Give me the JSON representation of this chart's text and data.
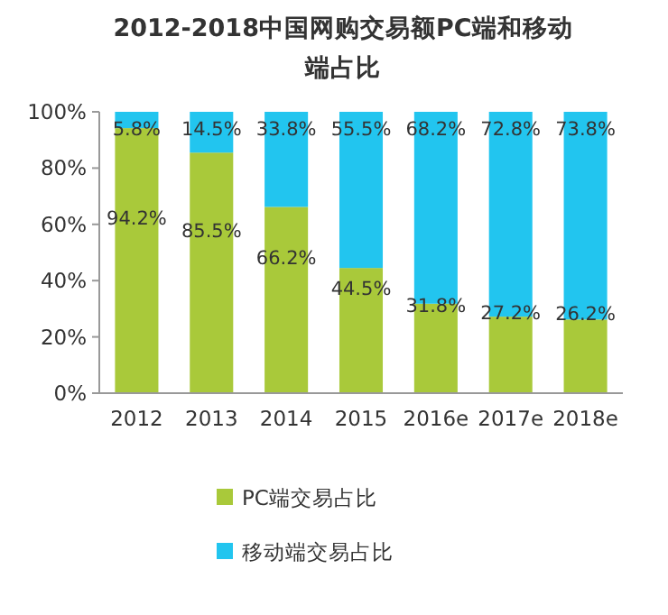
{
  "chart_data": {
    "type": "bar",
    "title": "2012-2018中国网购交易额PC端和移动端占比",
    "stacked": true,
    "categories": [
      "2012",
      "2013",
      "2014",
      "2015",
      "2016e",
      "2017e",
      "2018e"
    ],
    "series": [
      {
        "name": "PC端交易占比",
        "color": "#a9c93a",
        "values": [
          94.2,
          85.5,
          66.2,
          44.5,
          31.8,
          27.2,
          26.2
        ],
        "value_labels": [
          "94.2%",
          "85.5%",
          "66.2%",
          "44.5%",
          "31.8%",
          "27.2%",
          "26.2%"
        ]
      },
      {
        "name": "移动端交易占比",
        "color": "#22c5ef",
        "values": [
          5.8,
          14.5,
          33.8,
          55.5,
          68.2,
          72.8,
          73.8
        ],
        "value_labels": [
          "5.8%",
          "14.5%",
          "33.8%",
          "55.5%",
          "68.2%",
          "72.8%",
          "73.8%"
        ]
      }
    ],
    "ylim": [
      0,
      100
    ],
    "yticks": [
      {
        "value": 0,
        "label": "0%"
      },
      {
        "value": 20,
        "label": "20%"
      },
      {
        "value": 40,
        "label": "40%"
      },
      {
        "value": 60,
        "label": "60%"
      },
      {
        "value": 80,
        "label": "80%"
      },
      {
        "value": 100,
        "label": "100%"
      }
    ],
    "grid": false,
    "legend": "bottom"
  }
}
